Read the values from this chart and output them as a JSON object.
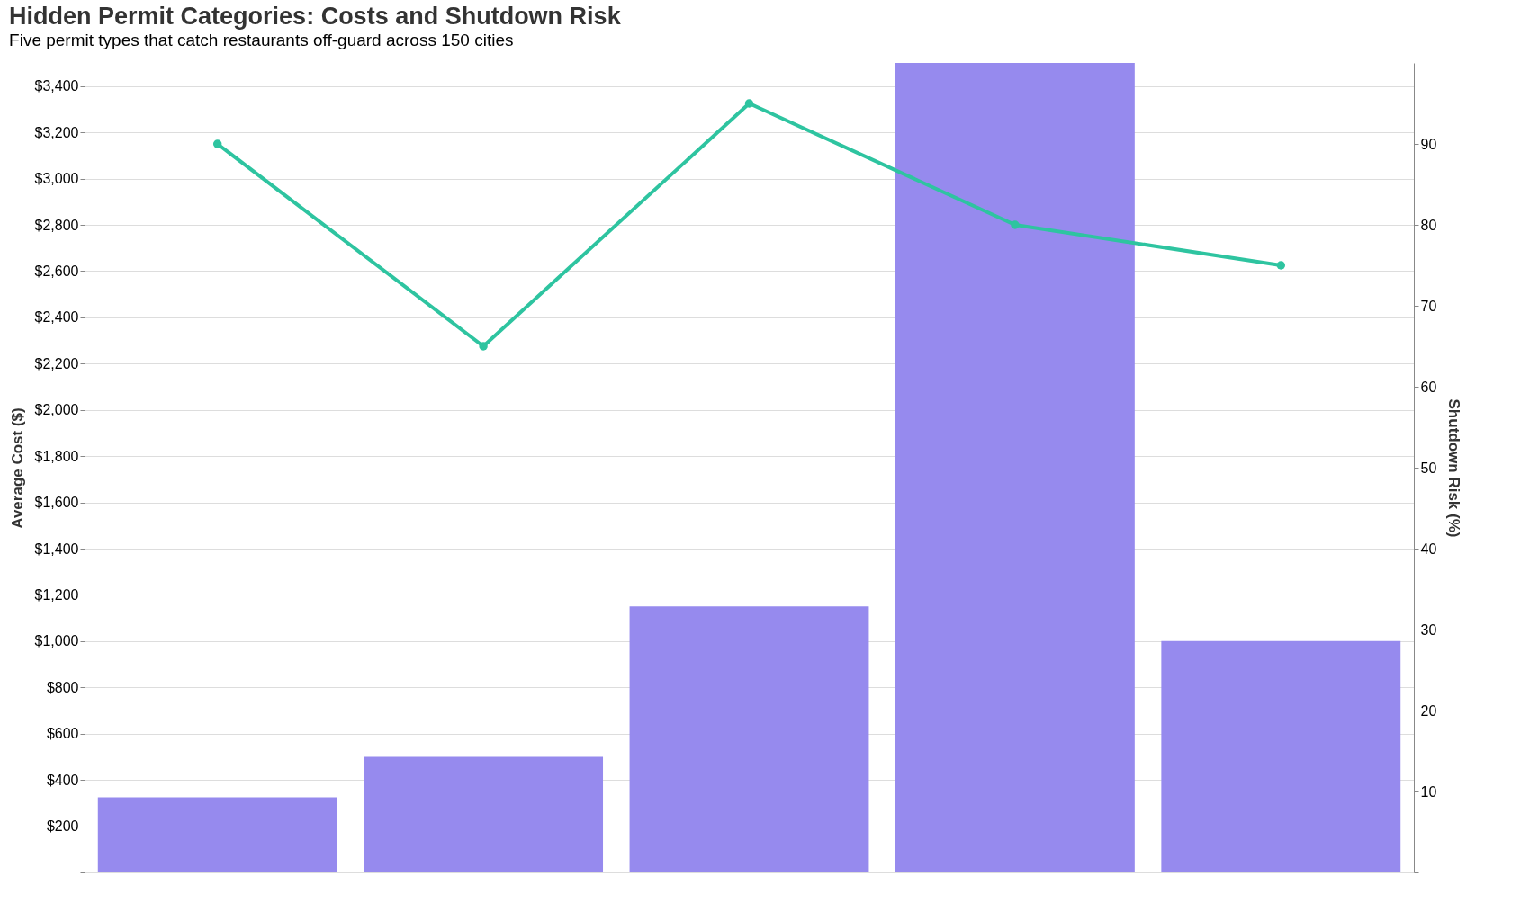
{
  "chart_data": {
    "type": "bar",
    "title": "Hidden Permit Categories: Costs and Shutdown Risk",
    "subtitle": "Five permit types that catch restaurants off-guard across 150 cities",
    "categories": [
      null,
      null,
      null,
      null,
      null
    ],
    "ylabel": "Average Cost ($)",
    "y2label": "Shutdown Risk (%)",
    "series": [
      {
        "color": "#968aee",
        "values": [
          325,
          500,
          1150,
          3500,
          1000
        ]
      },
      {
        "type": "line",
        "axis": "y2",
        "color": "#2ec4a0",
        "marker": "circle",
        "line_style": "solid",
        "values": [
          90,
          65,
          95,
          80,
          75
        ]
      }
    ],
    "ylim": [
      0,
      3500
    ],
    "yticks": [
      {
        "value": 0,
        "label": null
      },
      {
        "value": 200,
        "label": "$200"
      },
      {
        "value": 400,
        "label": "$400"
      },
      {
        "value": 600,
        "label": "$600"
      },
      {
        "value": 800,
        "label": "$800"
      },
      {
        "value": 1000,
        "label": "$1,000"
      },
      {
        "value": 1200,
        "label": "$1,200"
      },
      {
        "value": 1400,
        "label": "$1,400"
      },
      {
        "value": 1600,
        "label": "$1,600"
      },
      {
        "value": 1800,
        "label": "$1,800"
      },
      {
        "value": 2000,
        "label": "$2,000"
      },
      {
        "value": 2200,
        "label": "$2,200"
      },
      {
        "value": 2400,
        "label": "$2,400"
      },
      {
        "value": 2600,
        "label": "$2,600"
      },
      {
        "value": 2800,
        "label": "$2,800"
      },
      {
        "value": 3000,
        "label": "$3,000"
      },
      {
        "value": 3200,
        "label": "$3,200"
      },
      {
        "value": 3400,
        "label": "$3,400"
      }
    ],
    "y2lim": [
      0,
      100
    ],
    "y2ticks": [
      {
        "value": 0,
        "label": null
      },
      10,
      20,
      30,
      40,
      50,
      60,
      70,
      80,
      90
    ],
    "grid": "y"
  }
}
